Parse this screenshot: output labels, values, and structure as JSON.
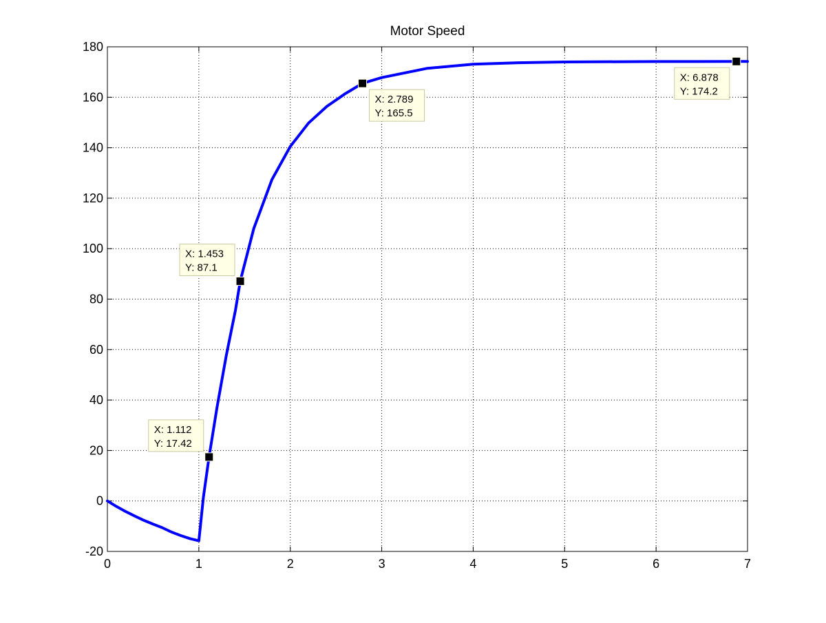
{
  "chart_data": {
    "type": "line",
    "title": "Motor Speed",
    "xlabel": "",
    "ylabel": "",
    "xlim": [
      0,
      7
    ],
    "ylim": [
      -20,
      180
    ],
    "x_ticks": [
      0,
      1,
      2,
      3,
      4,
      5,
      6,
      7
    ],
    "y_ticks": [
      -20,
      0,
      20,
      40,
      60,
      80,
      100,
      120,
      140,
      160,
      180
    ],
    "grid": true,
    "grid_style": "dotted",
    "series": [
      {
        "color": "#0000ff",
        "points": [
          [
            0,
            0
          ],
          [
            0.1,
            -2.2
          ],
          [
            0.2,
            -4.2
          ],
          [
            0.3,
            -6.0
          ],
          [
            0.4,
            -7.7
          ],
          [
            0.5,
            -9.2
          ],
          [
            0.6,
            -10.6
          ],
          [
            0.7,
            -12.3
          ],
          [
            0.8,
            -13.7
          ],
          [
            0.9,
            -14.9
          ],
          [
            1.0,
            -15.8
          ],
          [
            1.05,
            1.5
          ],
          [
            1.112,
            17.42
          ],
          [
            1.2,
            37.3
          ],
          [
            1.3,
            57.6
          ],
          [
            1.4,
            75.5
          ],
          [
            1.453,
            87.1
          ],
          [
            1.6,
            107.9
          ],
          [
            1.8,
            127.4
          ],
          [
            2.0,
            140.5
          ],
          [
            2.2,
            149.8
          ],
          [
            2.4,
            156.4
          ],
          [
            2.6,
            161.4
          ],
          [
            2.789,
            165.5
          ],
          [
            3.0,
            167.8
          ],
          [
            3.5,
            171.5
          ],
          [
            4.0,
            173.1
          ],
          [
            4.5,
            173.7
          ],
          [
            5.0,
            174.0
          ],
          [
            6.0,
            174.15
          ],
          [
            6.878,
            174.2
          ],
          [
            7.0,
            174.2
          ]
        ]
      }
    ],
    "data_tips": [
      {
        "x": 1.112,
        "y": 17.42,
        "x_text": "X: 1.112",
        "y_text": "Y: 17.42",
        "placement": "upper-left"
      },
      {
        "x": 1.453,
        "y": 87.1,
        "x_text": "X: 1.453",
        "y_text": "Y: 87.1",
        "placement": "upper-left"
      },
      {
        "x": 2.789,
        "y": 165.5,
        "x_text": "X: 2.789",
        "y_text": "Y: 165.5",
        "placement": "lower-right"
      },
      {
        "x": 6.878,
        "y": 174.2,
        "x_text": "X: 6.878",
        "y_text": "Y: 174.2",
        "placement": "lower-left"
      }
    ],
    "colors": {
      "line": "#0000ff",
      "tip_background": "#ffffe6",
      "tip_border": "#c8c8a0",
      "marker": "#000000"
    }
  }
}
